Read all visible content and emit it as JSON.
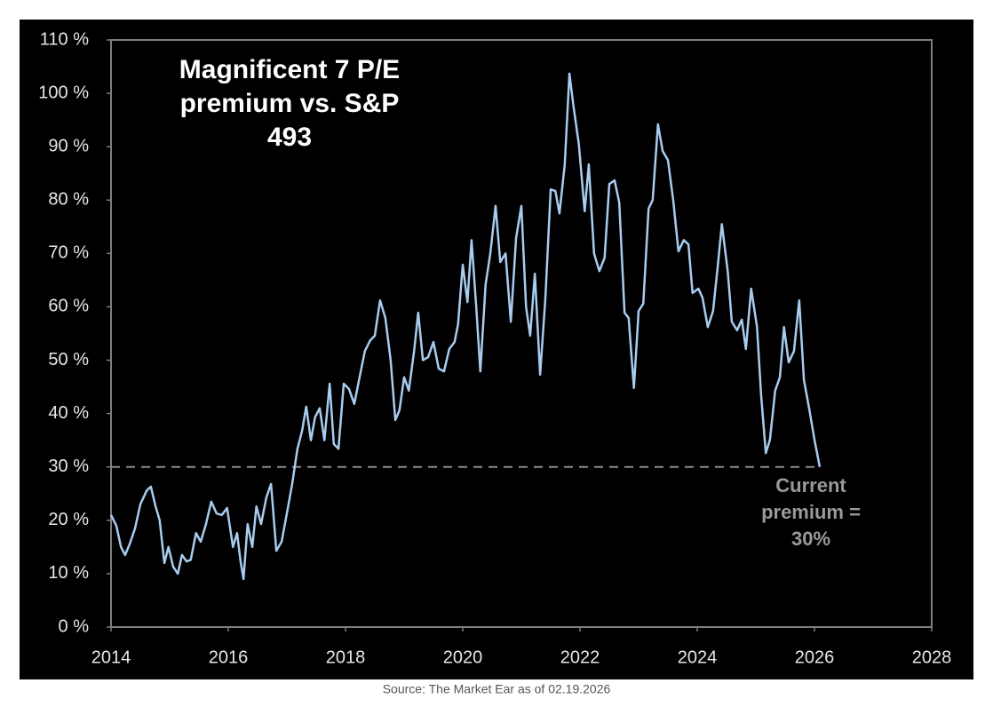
{
  "chart_data": {
    "type": "line",
    "title": [
      "Magnificent 7 P/E",
      "premium vs. S&P",
      "493"
    ],
    "annotation": [
      "Current",
      "premium =",
      "30%"
    ],
    "reference_line": 30,
    "reference_style": "dashed",
    "color": "#a8ccef",
    "grid": false,
    "xlim": [
      2014,
      2028
    ],
    "xticks": [
      2014,
      2016,
      2018,
      2020,
      2022,
      2024,
      2026,
      2028
    ],
    "ylim": [
      0,
      110
    ],
    "yticks": [
      {
        "value": 0,
        "label": "0 %"
      },
      {
        "value": 10,
        "label": "10 %"
      },
      {
        "value": 20,
        "label": "20 %"
      },
      {
        "value": 30,
        "label": "30 %"
      },
      {
        "value": 40,
        "label": "40 %"
      },
      {
        "value": 50,
        "label": "50 %"
      },
      {
        "value": 60,
        "label": "60 %"
      },
      {
        "value": 70,
        "label": "70 %"
      },
      {
        "value": 80,
        "label": "80 %"
      },
      {
        "value": 90,
        "label": "90 %"
      },
      {
        "value": 100,
        "label": "100 %"
      },
      {
        "value": 110,
        "label": "110 %"
      }
    ],
    "x": [
      2014.0,
      2014.09,
      2014.17,
      2014.24,
      2014.32,
      2014.41,
      2014.5,
      2014.61,
      2014.68,
      2014.76,
      2014.83,
      2014.91,
      2014.98,
      2015.06,
      2015.14,
      2015.21,
      2015.29,
      2015.36,
      2015.45,
      2015.53,
      2015.62,
      2015.71,
      2015.8,
      2015.89,
      2015.98,
      2016.08,
      2016.15,
      2016.21,
      2016.26,
      2016.33,
      2016.41,
      2016.48,
      2016.56,
      2016.65,
      2016.73,
      2016.82,
      2016.91,
      2017.0,
      2017.09,
      2017.18,
      2017.26,
      2017.33,
      2017.41,
      2017.48,
      2017.56,
      2017.64,
      2017.73,
      2017.8,
      2017.88,
      2017.97,
      2018.06,
      2018.15,
      2018.24,
      2018.33,
      2018.42,
      2018.5,
      2018.59,
      2018.68,
      2018.77,
      2018.85,
      2018.92,
      2019.0,
      2019.08,
      2019.17,
      2019.24,
      2019.32,
      2019.41,
      2019.5,
      2019.59,
      2019.68,
      2019.77,
      2019.86,
      2019.92,
      2020.0,
      2020.08,
      2020.15,
      2020.23,
      2020.3,
      2020.39,
      2020.47,
      2020.56,
      2020.64,
      2020.73,
      2020.82,
      2020.91,
      2021.0,
      2021.08,
      2021.15,
      2021.23,
      2021.32,
      2021.41,
      2021.5,
      2021.58,
      2021.65,
      2021.74,
      2021.82,
      2021.89,
      2021.98,
      2022.08,
      2022.15,
      2022.24,
      2022.33,
      2022.42,
      2022.5,
      2022.59,
      2022.67,
      2022.76,
      2022.83,
      2022.92,
      2023.0,
      2023.08,
      2023.17,
      2023.24,
      2023.33,
      2023.41,
      2023.5,
      2023.59,
      2023.68,
      2023.77,
      2023.85,
      2023.92,
      2024.02,
      2024.09,
      2024.18,
      2024.27,
      2024.35,
      2024.42,
      2024.52,
      2024.59,
      2024.68,
      2024.76,
      2024.83,
      2024.92,
      2025.02,
      2025.09,
      2025.17,
      2025.24,
      2025.33,
      2025.41,
      2025.48,
      2025.56,
      2025.65,
      2025.74,
      2025.82,
      2025.91,
      2026.0,
      2026.09
    ],
    "values": [
      21,
      19,
      15,
      13.5,
      15.6,
      18.5,
      23,
      25.6,
      26.3,
      22.6,
      20,
      12,
      15,
      11.3,
      10,
      13.5,
      12.3,
      12.6,
      17.6,
      16,
      19.3,
      23.5,
      21.3,
      21,
      22.3,
      15,
      17.6,
      12.3,
      9,
      19.3,
      15,
      22.6,
      19.3,
      24.3,
      26.8,
      14.3,
      16,
      21.3,
      26.8,
      33.4,
      36.8,
      41.3,
      35,
      39.3,
      41,
      35,
      45.6,
      34.3,
      33.4,
      45.6,
      44.6,
      41.8,
      46.8,
      51.7,
      53.7,
      54.6,
      61.2,
      57.9,
      50,
      38.8,
      40.6,
      46.8,
      44.3,
      51.7,
      58.9,
      50,
      50.6,
      53.4,
      48.4,
      47.9,
      52.1,
      53.4,
      56.7,
      67.9,
      60.9,
      72.5,
      60,
      47.9,
      64.2,
      70,
      78.9,
      68.4,
      70,
      57.2,
      72.9,
      78.9,
      60,
      54.6,
      66.2,
      47.3,
      61.7,
      82,
      81.7,
      77.5,
      86.7,
      103.7,
      97.5,
      90.5,
      77.9,
      86.7,
      70,
      66.7,
      69.2,
      83,
      83.7,
      79.5,
      58.9,
      57.9,
      44.8,
      59.2,
      60.6,
      78.4,
      80,
      94.2,
      89.2,
      87.5,
      80,
      70.4,
      72.5,
      71.7,
      62.6,
      63.4,
      61.7,
      56.2,
      59.2,
      67.6,
      75.5,
      66.7,
      57.2,
      55.6,
      57.6,
      52.1,
      63.4,
      56.2,
      43.4,
      32.6,
      35.1,
      44.3,
      46.8,
      56.2,
      49.6,
      51.7,
      61.2,
      46.3,
      40.9,
      35.1,
      30
    ]
  },
  "source": "Source: The Market Ear as of 02.19.2026"
}
